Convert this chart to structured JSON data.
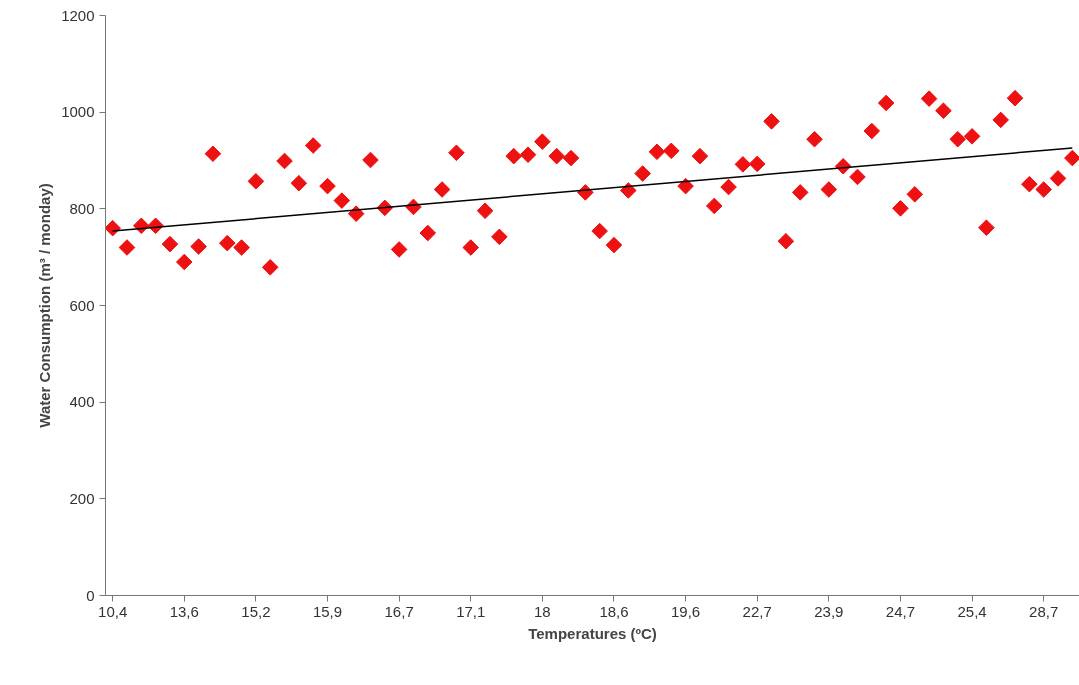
{
  "chart_data": {
    "type": "scatter",
    "xlabel": "Temperatures (ºC)",
    "ylabel": "Water Consumption (m³ / monday)",
    "categories": [
      "10,4",
      null,
      null,
      null,
      null,
      "13,6",
      null,
      null,
      null,
      null,
      "15,2",
      null,
      null,
      null,
      null,
      "15,9",
      null,
      null,
      null,
      null,
      "16,7",
      null,
      null,
      null,
      null,
      "17,1",
      null,
      null,
      null,
      null,
      "18",
      null,
      null,
      null,
      null,
      "18,6",
      null,
      null,
      null,
      null,
      "19,6",
      null,
      null,
      null,
      null,
      "22,7",
      null,
      null,
      null,
      null,
      "23,9",
      null,
      null,
      null,
      null,
      "24,7",
      null,
      null,
      null,
      null,
      "25,4",
      null,
      null,
      null,
      null,
      "28,7",
      null,
      null
    ],
    "ylim": [
      0,
      1200
    ],
    "yticks": [
      0,
      200,
      400,
      600,
      800,
      1000,
      1200
    ],
    "grid": false,
    "series": [
      {
        "marker": "diamond",
        "color": "#ee1111",
        "values": [
          760,
          720,
          765,
          765,
          727,
          690,
          722,
          914,
          729,
          720,
          857,
          679,
          899,
          853,
          931,
          847,
          817,
          790,
          901,
          802,
          716,
          804,
          750,
          840,
          916,
          720,
          796,
          742,
          909,
          912,
          939,
          909,
          905,
          834,
          754,
          725,
          838,
          873,
          918,
          920,
          847,
          909,
          806,
          845,
          892,
          893,
          981,
          733,
          834,
          944,
          840,
          888,
          866,
          961,
          1019,
          801,
          830,
          1028,
          1003,
          944,
          950,
          761,
          984,
          1029,
          851,
          840,
          863,
          905
        ]
      },
      {
        "type": "line",
        "marker": "none",
        "color": "#000000",
        "values": [
          754,
          null,
          null,
          null,
          null,
          null,
          null,
          null,
          null,
          null,
          null,
          null,
          null,
          null,
          null,
          null,
          null,
          null,
          null,
          null,
          null,
          null,
          null,
          null,
          null,
          null,
          null,
          null,
          null,
          null,
          null,
          null,
          null,
          null,
          null,
          null,
          null,
          null,
          null,
          null,
          null,
          null,
          null,
          null,
          null,
          null,
          null,
          null,
          null,
          null,
          null,
          null,
          null,
          null,
          null,
          null,
          null,
          null,
          null,
          null,
          null,
          null,
          null,
          null,
          null,
          null,
          null,
          926
        ]
      }
    ]
  }
}
